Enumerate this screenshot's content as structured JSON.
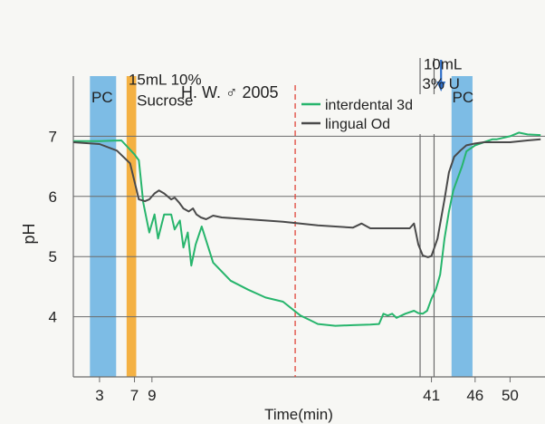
{
  "colors": {
    "pc_band": "#6fb5e3",
    "sucrose_band": "#f3a830",
    "interdental": "#27b56c",
    "lingual": "#4a4a4a",
    "dashed": "#e0453a",
    "arrow": "#2f6fc9",
    "grid": "#6b6b6b"
  },
  "chart_data": {
    "type": "line",
    "title": "H. W. ♂ 2005",
    "xlabel": "Time(min)",
    "ylabel": "pH",
    "xlim": [
      0,
      54
    ],
    "ylim": [
      3,
      8
    ],
    "grid": "horizontal",
    "legend_position": "top-center",
    "x_ticks": [
      3,
      7,
      9,
      41,
      46,
      50
    ],
    "y_ticks": [
      4,
      5,
      6,
      7
    ],
    "bands": [
      {
        "label": "PC",
        "x": [
          1.9,
          4.9
        ]
      },
      {
        "label": "",
        "x": [
          6.1,
          7.2
        ]
      },
      {
        "label": "PC",
        "x": [
          43.3,
          45.7
        ]
      }
    ],
    "annotations": [
      {
        "text": "15mL 10%",
        "x": 10.5,
        "y": 7.95
      },
      {
        "text": "Sucrose",
        "x": 10.5,
        "y": 7.6
      },
      {
        "text": "10mL",
        "x": 42.3,
        "y": 8.2
      },
      {
        "text": "3% U",
        "x": 42.1,
        "y": 7.88
      },
      {
        "text": "PC",
        "x": 3.3,
        "y": 7.65
      },
      {
        "text": "PC",
        "x": 44.6,
        "y": 7.65
      }
    ],
    "markers": [
      {
        "type": "dashed-vertical",
        "x": 25.4
      },
      {
        "type": "vertical",
        "x": 39.7
      },
      {
        "type": "vertical",
        "x": 41.3
      },
      {
        "type": "arrow",
        "x": 42.1
      }
    ],
    "series": [
      {
        "name": "interdental 3d",
        "x": [
          0,
          3,
          5.5,
          7,
          7.5,
          8,
          8.7,
          9.3,
          9.7,
          10.4,
          11.2,
          11.6,
          12.2,
          12.6,
          13.1,
          13.5,
          14,
          14.7,
          16,
          18,
          20,
          22,
          24,
          26,
          27,
          28,
          30,
          32,
          34,
          35,
          35.5,
          36,
          36.5,
          37,
          38,
          39,
          39.5,
          40,
          40.5,
          41,
          41.5,
          42,
          42.5,
          43,
          43.5,
          44.5,
          45,
          46,
          47,
          48,
          48.5,
          50,
          51,
          52,
          53.5
        ],
        "y": [
          6.92,
          6.92,
          6.93,
          6.7,
          6.6,
          5.9,
          5.4,
          5.7,
          5.3,
          5.7,
          5.7,
          5.45,
          5.6,
          5.15,
          5.4,
          4.85,
          5.2,
          5.5,
          4.9,
          4.6,
          4.45,
          4.32,
          4.25,
          4.02,
          3.95,
          3.88,
          3.85,
          3.86,
          3.87,
          3.88,
          4.05,
          4.02,
          4.05,
          3.98,
          4.05,
          4.1,
          4.06,
          4.05,
          4.1,
          4.3,
          4.45,
          4.7,
          5.3,
          5.75,
          6.1,
          6.5,
          6.75,
          6.85,
          6.9,
          6.95,
          6.95,
          7.0,
          7.06,
          7.03,
          7.02
        ]
      },
      {
        "name": "lingual Od",
        "x": [
          0,
          3,
          5,
          6.5,
          7.5,
          8.2,
          8.7,
          9.3,
          9.8,
          10.4,
          11.2,
          11.6,
          12.1,
          12.6,
          13.2,
          13.7,
          14.1,
          14.6,
          15.2,
          16,
          17,
          20,
          24,
          28,
          32,
          33,
          34,
          36,
          38.5,
          39,
          39.5,
          40,
          40.6,
          41,
          41.7,
          42.5,
          43,
          43.6,
          44.3,
          45,
          46,
          47,
          48,
          50,
          52,
          53.5
        ],
        "y": [
          6.9,
          6.87,
          6.76,
          6.55,
          5.95,
          5.92,
          5.95,
          6.05,
          6.1,
          6.05,
          5.95,
          5.98,
          5.9,
          5.8,
          5.75,
          5.8,
          5.7,
          5.65,
          5.62,
          5.68,
          5.65,
          5.62,
          5.58,
          5.52,
          5.48,
          5.55,
          5.47,
          5.47,
          5.47,
          5.55,
          5.2,
          5.02,
          4.99,
          5.01,
          5.3,
          5.95,
          6.4,
          6.66,
          6.76,
          6.85,
          6.88,
          6.9,
          6.9,
          6.9,
          6.93,
          6.95
        ]
      }
    ]
  }
}
